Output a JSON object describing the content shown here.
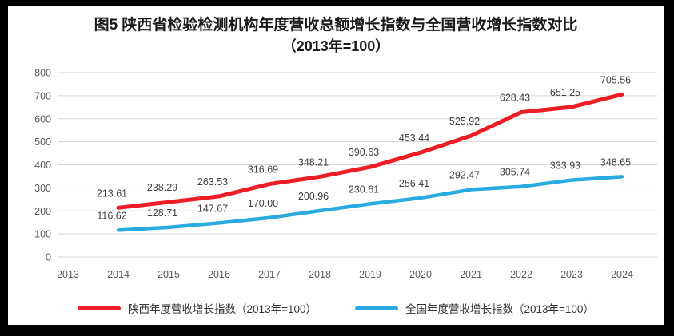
{
  "frame": {
    "background": "#000000",
    "panel_background": "#ffffff"
  },
  "title": {
    "line1": "图5  陕西省检验检测机构年度营收总额增长指数与全国营收增长指数对比",
    "line2": "（2013年=100）"
  },
  "chart_data": {
    "type": "line",
    "categories": [
      "2013",
      "2014",
      "2015",
      "2016",
      "2017",
      "2018",
      "2019",
      "2020",
      "2021",
      "2022",
      "2023",
      "2024"
    ],
    "series": [
      {
        "name": "陕西年度营收增长指数（2013年=100）",
        "color": "#ec1d24",
        "line_width": 5,
        "values": [
          null,
          213.61,
          238.29,
          263.53,
          316.69,
          348.21,
          390.63,
          453.44,
          525.92,
          628.43,
          651.25,
          705.56
        ]
      },
      {
        "name": "全国年度营收增长指数（2013年=100）",
        "color": "#29abe2",
        "line_width": 4.5,
        "values": [
          null,
          116.62,
          128.71,
          147.67,
          170.0,
          200.96,
          230.61,
          256.41,
          292.47,
          305.74,
          333.93,
          348.65
        ]
      }
    ],
    "title": "图5 陕西省检验检测机构年度营收总额增长指数与全国营收增长指数对比（2013年=100）",
    "xlabel": "",
    "ylabel": "",
    "ylim": [
      0,
      800
    ],
    "yticks": [
      0,
      100,
      200,
      300,
      400,
      500,
      600,
      700,
      800
    ],
    "grid": "horizontal",
    "gridline_color": "#d6d6d6",
    "value_labels": true,
    "value_label_decimals": 2,
    "legend_position": "bottom"
  }
}
